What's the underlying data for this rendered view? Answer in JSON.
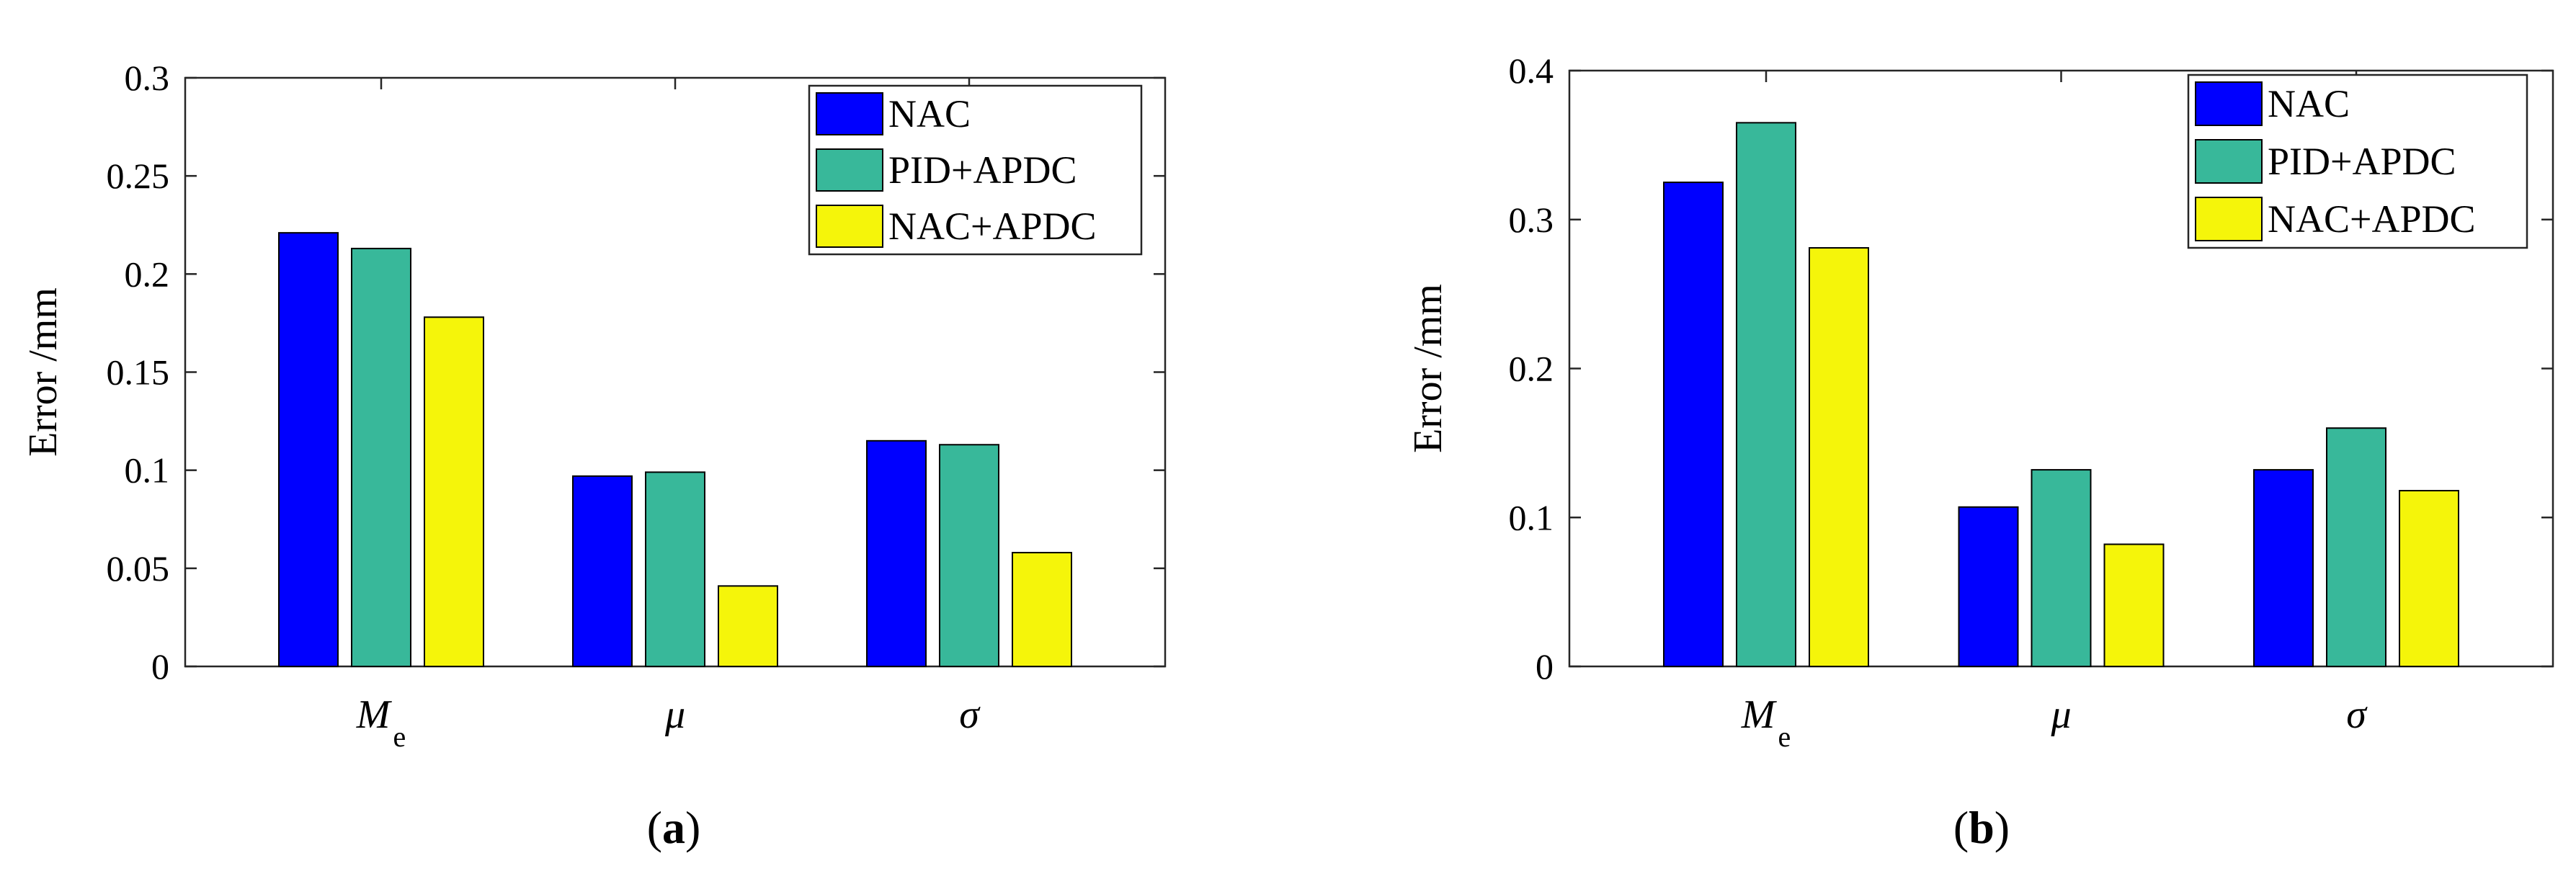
{
  "chart_data": [
    {
      "type": "bar",
      "panel_label": "a",
      "title": "",
      "xlabel": "",
      "ylabel": "Error /mm",
      "ylim": [
        0,
        0.3
      ],
      "yticks": [
        0,
        0.05,
        0.1,
        0.15,
        0.2,
        0.25,
        0.3
      ],
      "ytick_labels": [
        "0",
        "0.05",
        "0.1",
        "0.15",
        "0.2",
        "0.25",
        "0.3"
      ],
      "categories": [
        {
          "main": "M",
          "sub": "e"
        },
        {
          "main": "μ",
          "sub": ""
        },
        {
          "main": "σ",
          "sub": ""
        }
      ],
      "series": [
        {
          "name": "NAC",
          "color": "#0000ff",
          "values": [
            0.221,
            0.097,
            0.115
          ]
        },
        {
          "name": "PID+APDC",
          "color": "#38b89a",
          "values": [
            0.213,
            0.099,
            0.113
          ]
        },
        {
          "name": "NAC+APDC",
          "color": "#f5f50a",
          "values": [
            0.178,
            0.041,
            0.058
          ]
        }
      ],
      "legend_position": "top-right",
      "grid": false
    },
    {
      "type": "bar",
      "panel_label": "b",
      "title": "",
      "xlabel": "",
      "ylabel": "Error /mm",
      "ylim": [
        0,
        0.4
      ],
      "yticks": [
        0,
        0.1,
        0.2,
        0.3,
        0.4
      ],
      "ytick_labels": [
        "0",
        "0.1",
        "0.2",
        "0.3",
        "0.4"
      ],
      "categories": [
        {
          "main": "M",
          "sub": "e"
        },
        {
          "main": "μ",
          "sub": ""
        },
        {
          "main": "σ",
          "sub": ""
        }
      ],
      "series": [
        {
          "name": "NAC",
          "color": "#0000ff",
          "values": [
            0.325,
            0.107,
            0.132
          ]
        },
        {
          "name": "PID+APDC",
          "color": "#38b89a",
          "values": [
            0.365,
            0.132,
            0.16
          ]
        },
        {
          "name": "NAC+APDC",
          "color": "#f5f50a",
          "values": [
            0.281,
            0.082,
            0.118
          ]
        }
      ],
      "legend_position": "top-right",
      "grid": false
    }
  ]
}
